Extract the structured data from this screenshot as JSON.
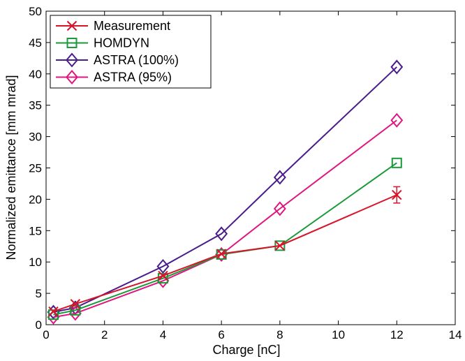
{
  "chart_data": {
    "type": "line",
    "xlabel": "Charge [nC]",
    "ylabel": "Normalized emittance [mm mrad]",
    "xlim": [
      0,
      14
    ],
    "ylim": [
      0,
      50
    ],
    "xticks": [
      0,
      2,
      4,
      6,
      8,
      10,
      12,
      14
    ],
    "yticks": [
      0,
      5,
      10,
      15,
      20,
      25,
      30,
      35,
      40,
      45,
      50
    ],
    "grid": false,
    "legend_position": "top-left",
    "series": [
      {
        "name": "ASTRA (100%)",
        "color": "#4b1d8c",
        "marker": "diamond",
        "x": [
          0.25,
          1,
          4,
          6,
          8,
          12
        ],
        "y": [
          2.0,
          2.7,
          9.3,
          14.5,
          23.5,
          41.1
        ]
      },
      {
        "name": "ASTRA (95%)",
        "color": "#e0157f",
        "marker": "diamond",
        "x": [
          0.25,
          1,
          4,
          6,
          8,
          12
        ],
        "y": [
          1.2,
          1.8,
          7.0,
          11.2,
          18.5,
          32.6
        ]
      },
      {
        "name": "HOMDYN",
        "color": "#1a9a3a",
        "marker": "square",
        "x": [
          0.25,
          1,
          4,
          6,
          8,
          12
        ],
        "y": [
          1.6,
          2.3,
          7.4,
          11.2,
          12.6,
          25.8
        ]
      },
      {
        "name": "Measurement",
        "color": "#d8142b",
        "marker": "x",
        "x": [
          0.25,
          1,
          4,
          6,
          8,
          12
        ],
        "y": [
          2.1,
          3.3,
          7.8,
          11.3,
          12.6,
          20.7
        ],
        "error": [
          null,
          null,
          null,
          null,
          null,
          1.3
        ]
      }
    ],
    "legend_order": [
      "Measurement",
      "HOMDYN",
      "ASTRA (100%)",
      "ASTRA (95%)"
    ]
  }
}
